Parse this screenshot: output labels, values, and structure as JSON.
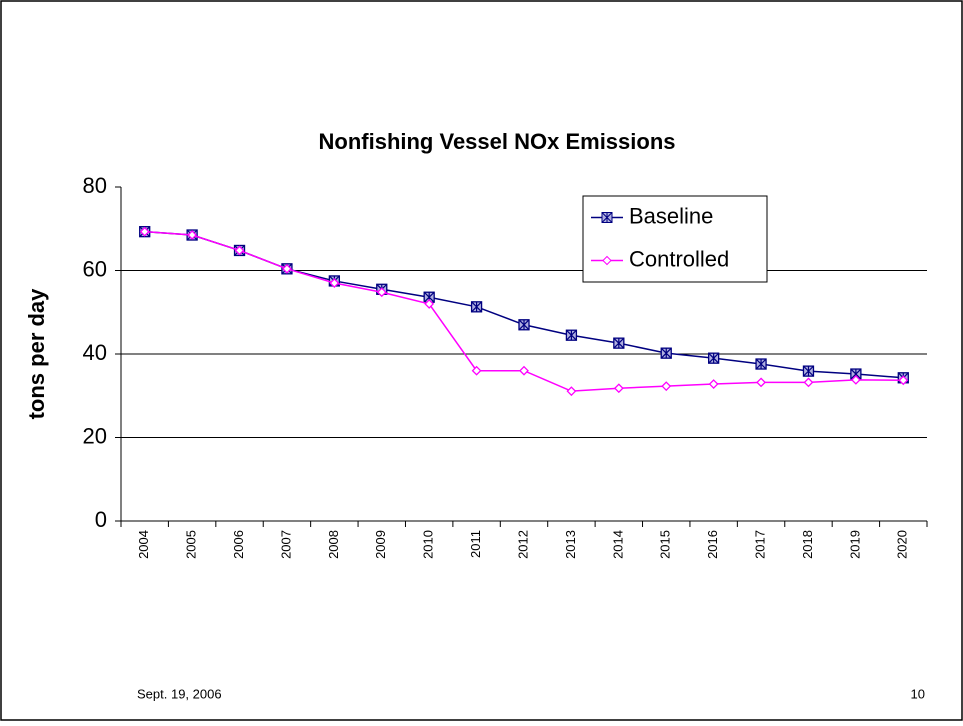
{
  "chart_data": {
    "type": "line",
    "title": "Nonfishing Vessel NOx Emissions",
    "y_label": "tons per day",
    "categories": [
      "2004",
      "2005",
      "2006",
      "2007",
      "2008",
      "2009",
      "2010",
      "2011",
      "2012",
      "2013",
      "2014",
      "2015",
      "2016",
      "2017",
      "2018",
      "2019",
      "2020"
    ],
    "series": [
      {
        "name": "Baseline",
        "color": "#000080",
        "values": [
          69.3,
          68.5,
          64.8,
          60.4,
          57.5,
          55.5,
          53.6,
          51.3,
          47,
          44.5,
          42.6,
          40.2,
          39,
          37.6,
          35.9,
          35.2,
          34.3
        ]
      },
      {
        "name": "Controlled",
        "color": "#ff00ff",
        "values": [
          69.3,
          68.5,
          64.8,
          60.4,
          57.0,
          54.8,
          52,
          36,
          36,
          31.1,
          31.8,
          32.3,
          32.8,
          33.2,
          33.2,
          33.8,
          33.7
        ]
      }
    ],
    "ylim": [
      0,
      80
    ],
    "yticks": [
      0,
      20,
      40,
      60,
      80
    ],
    "grid": true,
    "legend": "top-right"
  },
  "footer": {
    "date": "Sept. 19, 2006",
    "page": "10"
  }
}
